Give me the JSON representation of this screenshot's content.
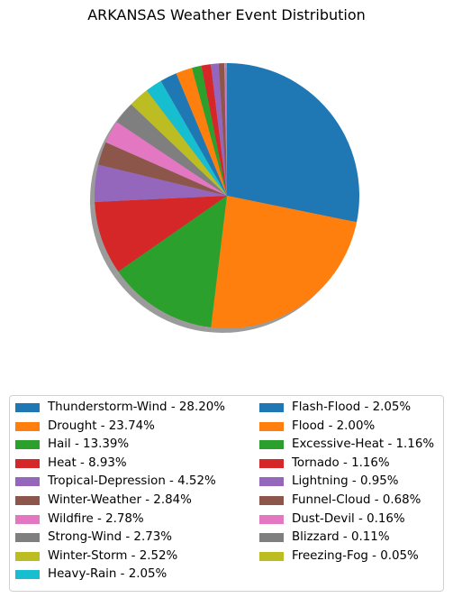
{
  "chart_data": {
    "type": "pie",
    "title": "ARKANSAS Weather Event Distribution",
    "start_angle_deg": 90,
    "direction": "clockwise",
    "shadow": true,
    "legend_position": "bottom",
    "legend_columns": 2,
    "slices": [
      {
        "label": "Thunderstorm-Wind - 28.20%",
        "value": 28.2,
        "color": "#1f77b4"
      },
      {
        "label": "Drought - 23.74%",
        "value": 23.74,
        "color": "#ff7f0e"
      },
      {
        "label": "Hail - 13.39%",
        "value": 13.39,
        "color": "#2ca02c"
      },
      {
        "label": "Heat - 8.93%",
        "value": 8.93,
        "color": "#d62728"
      },
      {
        "label": "Tropical-Depression - 4.52%",
        "value": 4.52,
        "color": "#9467bd"
      },
      {
        "label": "Winter-Weather - 2.84%",
        "value": 2.84,
        "color": "#8c564b"
      },
      {
        "label": "Wildfire - 2.78%",
        "value": 2.78,
        "color": "#e377c2"
      },
      {
        "label": "Strong-Wind - 2.73%",
        "value": 2.73,
        "color": "#7f7f7f"
      },
      {
        "label": "Winter-Storm - 2.52%",
        "value": 2.52,
        "color": "#bcbd22"
      },
      {
        "label": "Heavy-Rain - 2.05%",
        "value": 2.05,
        "color": "#17becf"
      },
      {
        "label": "Flash-Flood - 2.05%",
        "value": 2.05,
        "color": "#1f77b4"
      },
      {
        "label": "Flood - 2.00%",
        "value": 2.0,
        "color": "#ff7f0e"
      },
      {
        "label": "Excessive-Heat - 1.16%",
        "value": 1.16,
        "color": "#2ca02c"
      },
      {
        "label": "Tornado - 1.16%",
        "value": 1.16,
        "color": "#d62728"
      },
      {
        "label": "Lightning - 0.95%",
        "value": 0.95,
        "color": "#9467bd"
      },
      {
        "label": "Funnel-Cloud - 0.68%",
        "value": 0.68,
        "color": "#8c564b"
      },
      {
        "label": "Dust-Devil - 0.16%",
        "value": 0.16,
        "color": "#e377c2"
      },
      {
        "label": "Blizzard - 0.11%",
        "value": 0.11,
        "color": "#7f7f7f"
      },
      {
        "label": "Freezing-Fog - 0.05%",
        "value": 0.05,
        "color": "#bcbd22"
      }
    ]
  }
}
